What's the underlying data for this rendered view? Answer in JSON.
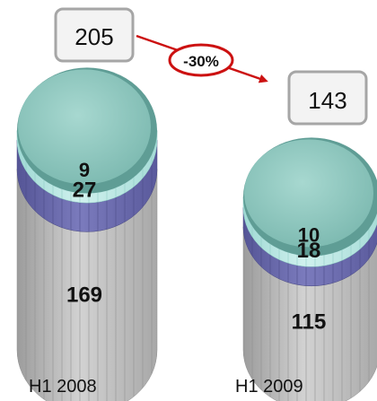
{
  "chart_data": {
    "type": "stacked-cylinder",
    "categories": [
      "H1 2008",
      "H1 2009"
    ],
    "series": [
      {
        "values": [
          169,
          115
        ],
        "color": "#b9b9b9"
      },
      {
        "values": [
          27,
          18
        ],
        "color": "#6b6bab"
      },
      {
        "values": [
          9,
          10
        ],
        "color": "#b8e6e2"
      }
    ],
    "totals": [
      205,
      143
    ],
    "change_label": "-30%",
    "colors": {
      "top_cap": "#88c4bb",
      "total_box_fill": "#f3f3f3",
      "total_box_border": "#a6a6a6",
      "arrow": "#cc1111"
    }
  }
}
